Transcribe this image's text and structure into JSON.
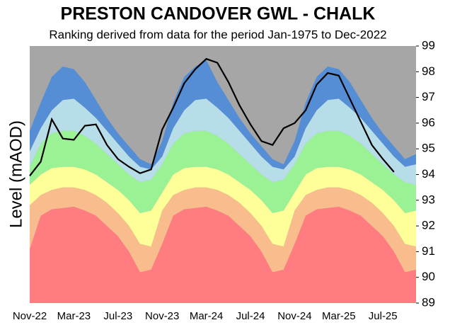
{
  "chart_data": {
    "type": "area",
    "title": "PRESTON CANDOVER GWL - CHALK",
    "subtitle": "Ranking derived from data for the period Jan-1975 to Dec-2022",
    "y_label": "Level (mAOD)",
    "categories": [
      "Nov-22",
      null,
      null,
      null,
      "Mar-23",
      null,
      null,
      null,
      "Jul-23",
      null,
      null,
      null,
      "Nov-23",
      null,
      null,
      null,
      "Mar-24",
      null,
      null,
      null,
      "Jul-24",
      null,
      null,
      null,
      "Nov-24",
      null,
      null,
      null,
      "Mar-25",
      null,
      null,
      null,
      "Jul-25",
      null,
      null,
      null
    ],
    "background_color": "#a6a6a6",
    "series": [
      {
        "color": "#ff7c80",
        "values": [
          91.1,
          92.4,
          92.65,
          92.7,
          92.75,
          92.6,
          92.4,
          92.0,
          91.6,
          91.0,
          90.2,
          90.3,
          91.3,
          92.4,
          92.65,
          92.7,
          92.75,
          92.6,
          92.4,
          92.0,
          91.6,
          91.0,
          90.2,
          90.3,
          91.3,
          92.4,
          92.65,
          92.7,
          92.75,
          92.6,
          92.4,
          92.0,
          91.6,
          91.0,
          90.2,
          90.3
        ]
      },
      {
        "color": "#f9bc8c",
        "values": [
          92.8,
          93.2,
          93.4,
          93.5,
          93.5,
          93.4,
          93.2,
          92.9,
          92.5,
          92.0,
          91.3,
          91.2,
          92.6,
          93.2,
          93.4,
          93.5,
          93.5,
          93.4,
          93.2,
          92.9,
          92.5,
          92.0,
          91.3,
          91.2,
          92.6,
          93.2,
          93.4,
          93.5,
          93.5,
          93.4,
          93.2,
          92.9,
          92.5,
          92.0,
          91.3,
          91.2
        ]
      },
      {
        "color": "#ffff99",
        "values": [
          93.6,
          94.0,
          94.25,
          94.3,
          94.3,
          94.2,
          94.0,
          93.7,
          93.4,
          93.0,
          92.5,
          92.6,
          93.3,
          94.0,
          94.25,
          94.3,
          94.3,
          94.2,
          94.0,
          93.7,
          93.4,
          93.0,
          92.5,
          92.6,
          93.3,
          94.0,
          94.25,
          94.3,
          94.3,
          94.2,
          94.0,
          93.7,
          93.4,
          93.0,
          92.5,
          92.6
        ]
      },
      {
        "color": "#9af294",
        "values": [
          94.3,
          95.2,
          95.6,
          95.7,
          95.7,
          95.5,
          95.2,
          94.8,
          94.4,
          94.0,
          93.7,
          93.8,
          94.4,
          95.2,
          95.6,
          95.7,
          95.7,
          95.5,
          95.2,
          94.8,
          94.4,
          94.0,
          93.7,
          93.8,
          94.4,
          95.2,
          95.6,
          95.7,
          95.7,
          95.5,
          95.2,
          94.8,
          94.4,
          94.0,
          93.7,
          93.6
        ]
      },
      {
        "color": "#b7dde8",
        "values": [
          94.9,
          95.8,
          96.5,
          96.9,
          96.95,
          96.6,
          96.2,
          95.7,
          95.2,
          94.7,
          94.3,
          94.2,
          94.7,
          95.8,
          96.5,
          96.9,
          96.95,
          96.6,
          96.2,
          95.7,
          95.2,
          94.7,
          94.3,
          94.2,
          94.7,
          95.8,
          96.5,
          96.9,
          96.95,
          96.6,
          96.2,
          95.7,
          95.2,
          94.7,
          94.3,
          94.4
        ]
      },
      {
        "color": "#558ed5",
        "values": [
          95.7,
          96.8,
          97.8,
          98.2,
          98.1,
          97.6,
          96.9,
          96.2,
          95.6,
          95.1,
          94.6,
          94.4,
          95.3,
          96.8,
          97.8,
          98.2,
          98.45,
          97.6,
          96.9,
          96.2,
          95.6,
          95.1,
          94.6,
          94.4,
          95.3,
          96.8,
          97.8,
          98.2,
          98.1,
          97.6,
          96.9,
          96.2,
          95.6,
          95.1,
          94.6,
          94.8
        ]
      },
      {
        "type": "line",
        "color": "#000000",
        "values": [
          93.95,
          94.5,
          96.15,
          95.4,
          95.35,
          95.9,
          95.95,
          95.15,
          94.6,
          94.3,
          94.05,
          94.2,
          95.75,
          96.6,
          97.55,
          98.1,
          98.5,
          98.35,
          97.6,
          96.7,
          95.95,
          95.3,
          95.15,
          95.8,
          96.0,
          96.5,
          97.5,
          97.95,
          97.85,
          96.95,
          96.05,
          95.15,
          94.6,
          94.1,
          null,
          null
        ]
      }
    ],
    "ylim": [
      89,
      99
    ],
    "yticks": [
      89,
      90,
      91,
      92,
      93,
      94,
      95,
      96,
      97,
      98,
      99
    ]
  }
}
